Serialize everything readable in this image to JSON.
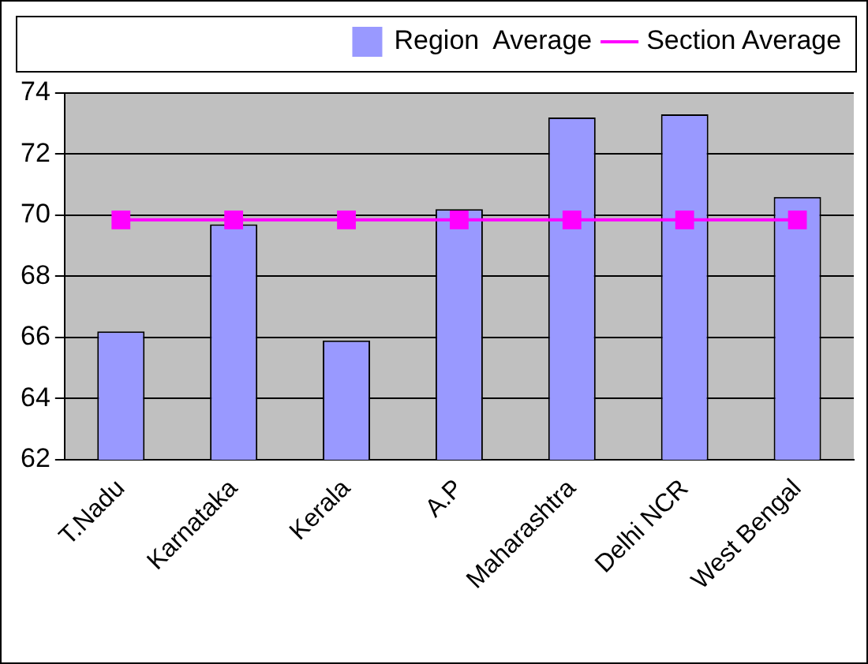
{
  "chart_data": {
    "type": "bar",
    "categories": [
      "T.Nadu",
      "Karnataka",
      "Kerala",
      "A.P",
      "Maharashtra",
      "Delhi NCR",
      "West Bengal"
    ],
    "series": [
      {
        "name": "Region  Average",
        "color": "#9999ff",
        "values": [
          66.2,
          69.7,
          65.9,
          70.2,
          73.2,
          73.3,
          70.6
        ]
      },
      {
        "name": "Section Average",
        "type": "line",
        "color": "#ff00ff",
        "values": [
          69.85,
          69.85,
          69.85,
          69.85,
          69.85,
          69.85,
          69.85
        ]
      }
    ],
    "ylim": [
      62,
      74
    ],
    "yticks": [
      62,
      64,
      66,
      68,
      70,
      72,
      74
    ],
    "grid": "y",
    "legend": "top right",
    "marker": "square"
  }
}
